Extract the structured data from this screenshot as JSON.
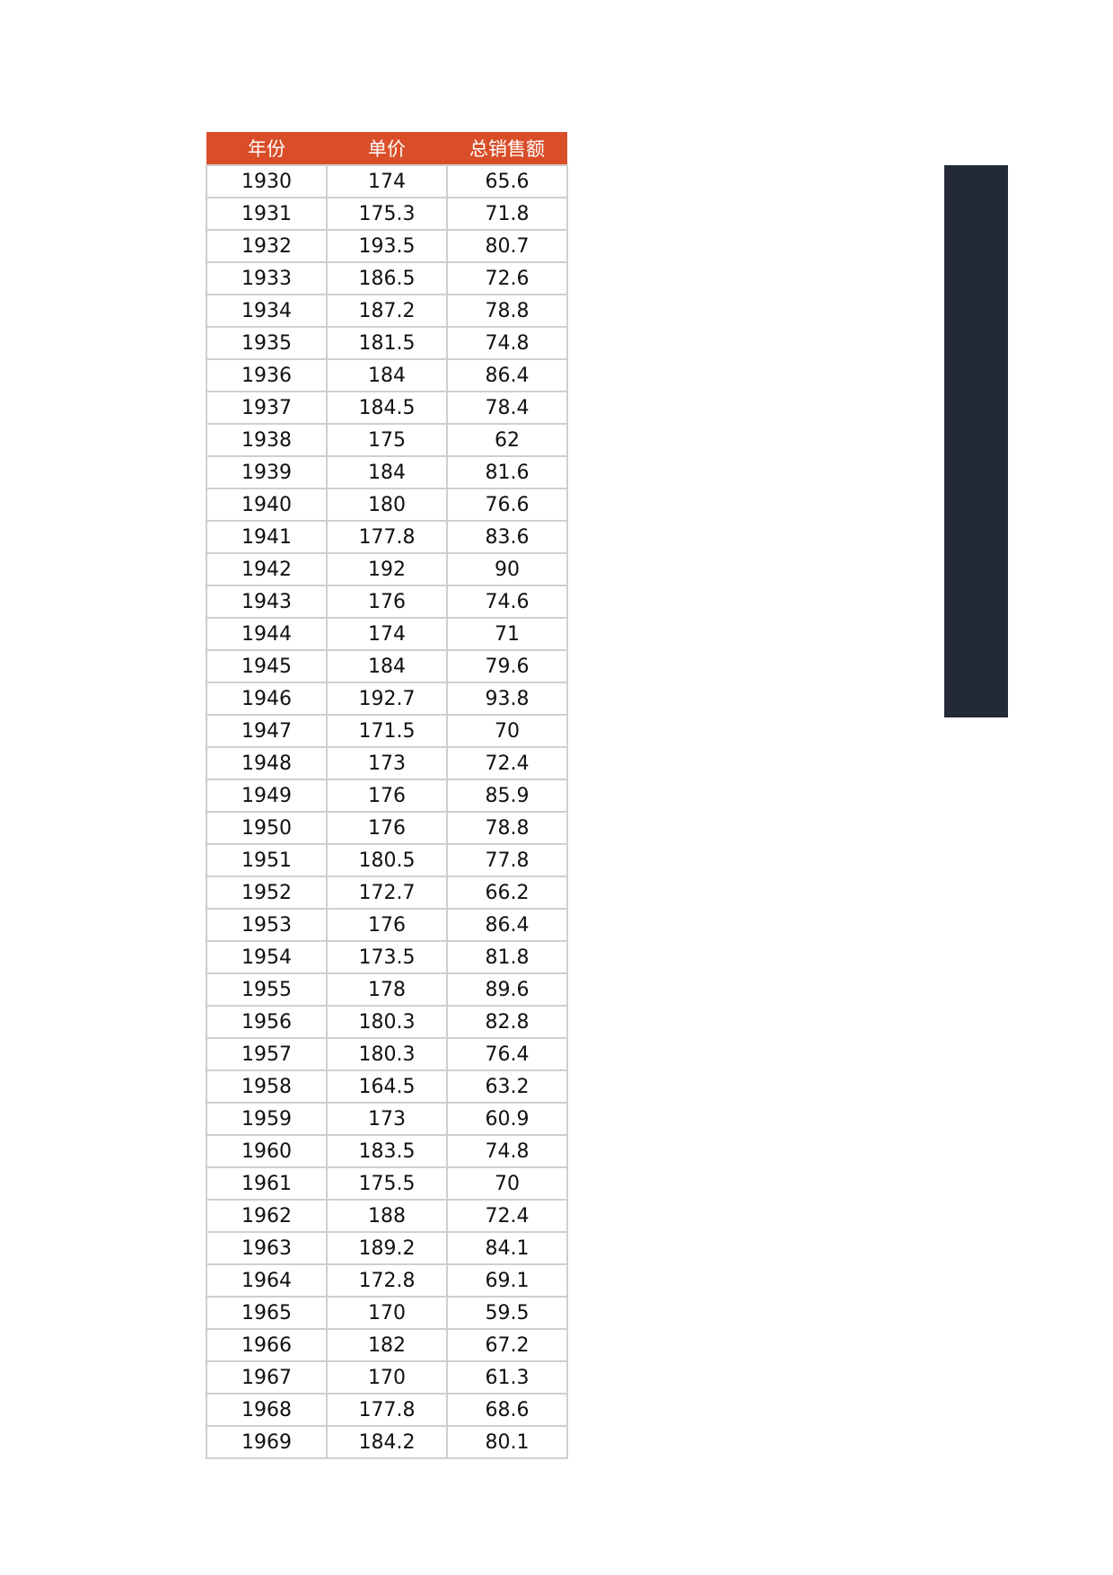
{
  "table": {
    "headers": [
      "年份",
      "单价",
      "总销售额"
    ],
    "header_color": "#d94e28",
    "rows": [
      [
        "1930",
        "174",
        "65.6"
      ],
      [
        "1931",
        "175.3",
        "71.8"
      ],
      [
        "1932",
        "193.5",
        "80.7"
      ],
      [
        "1933",
        "186.5",
        "72.6"
      ],
      [
        "1934",
        "187.2",
        "78.8"
      ],
      [
        "1935",
        "181.5",
        "74.8"
      ],
      [
        "1936",
        "184",
        "86.4"
      ],
      [
        "1937",
        "184.5",
        "78.4"
      ],
      [
        "1938",
        "175",
        "62"
      ],
      [
        "1939",
        "184",
        "81.6"
      ],
      [
        "1940",
        "180",
        "76.6"
      ],
      [
        "1941",
        "177.8",
        "83.6"
      ],
      [
        "1942",
        "192",
        "90"
      ],
      [
        "1943",
        "176",
        "74.6"
      ],
      [
        "1944",
        "174",
        "71"
      ],
      [
        "1945",
        "184",
        "79.6"
      ],
      [
        "1946",
        "192.7",
        "93.8"
      ],
      [
        "1947",
        "171.5",
        "70"
      ],
      [
        "1948",
        "173",
        "72.4"
      ],
      [
        "1949",
        "176",
        "85.9"
      ],
      [
        "1950",
        "176",
        "78.8"
      ],
      [
        "1951",
        "180.5",
        "77.8"
      ],
      [
        "1952",
        "172.7",
        "66.2"
      ],
      [
        "1953",
        "176",
        "86.4"
      ],
      [
        "1954",
        "173.5",
        "81.8"
      ],
      [
        "1955",
        "178",
        "89.6"
      ],
      [
        "1956",
        "180.3",
        "82.8"
      ],
      [
        "1957",
        "180.3",
        "76.4"
      ],
      [
        "1958",
        "164.5",
        "63.2"
      ],
      [
        "1959",
        "173",
        "60.9"
      ],
      [
        "1960",
        "183.5",
        "74.8"
      ],
      [
        "1961",
        "175.5",
        "70"
      ],
      [
        "1962",
        "188",
        "72.4"
      ],
      [
        "1963",
        "189.2",
        "84.1"
      ],
      [
        "1964",
        "172.8",
        "69.1"
      ],
      [
        "1965",
        "170",
        "59.5"
      ],
      [
        "1966",
        "182",
        "67.2"
      ],
      [
        "1967",
        "170",
        "61.3"
      ],
      [
        "1968",
        "177.8",
        "68.6"
      ],
      [
        "1969",
        "184.2",
        "80.1"
      ]
    ]
  },
  "side_bar_color": "#232a35"
}
